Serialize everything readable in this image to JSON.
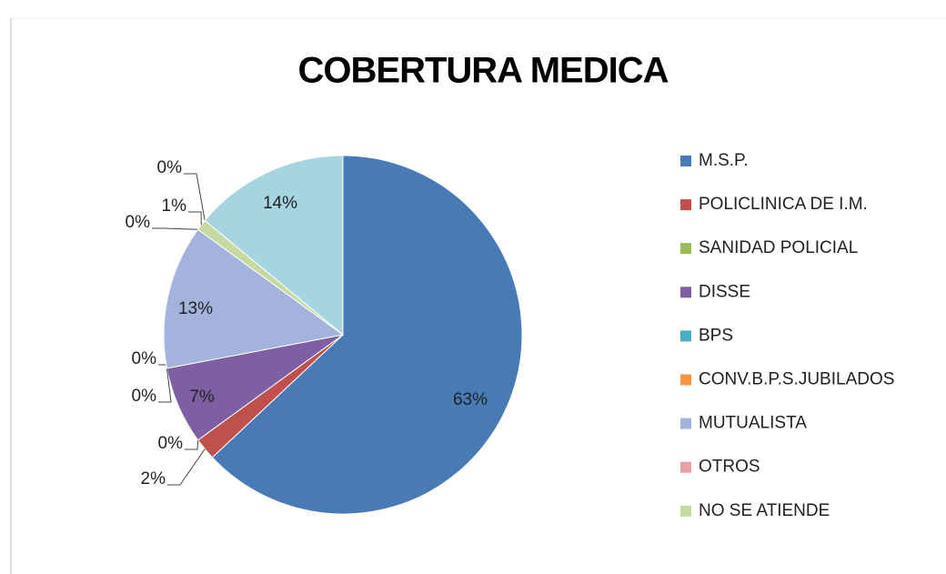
{
  "chart_data": {
    "type": "pie",
    "title": "COBERTURA MEDICA",
    "categories": [
      "M.S.P.",
      "POLICLINICA DE I.M.",
      "SANIDAD POLICIAL",
      "DISSE",
      "BPS",
      "CONV.B.P.S.JUBILADOS",
      "MUTUALISTA",
      "OTROS",
      "NO SE ATIENDE",
      null,
      null
    ],
    "values": [
      63,
      2,
      0,
      7,
      0,
      0,
      13,
      0,
      1,
      0,
      14
    ],
    "value_labels": [
      "63%",
      "2%",
      "0%",
      "7%",
      "0%",
      "0%",
      "13%",
      "0%",
      "1%",
      "0%",
      "14%"
    ],
    "colors": [
      "#4a7ab5",
      "#c0504d",
      "#9bbb59",
      "#7e5fa3",
      "#4bacc6",
      "#f79646",
      "#a4b3dc",
      "#e6a1a0",
      "#c6d9a0",
      "#b6a8d6",
      "#a6d4e1"
    ],
    "legend": "right"
  }
}
